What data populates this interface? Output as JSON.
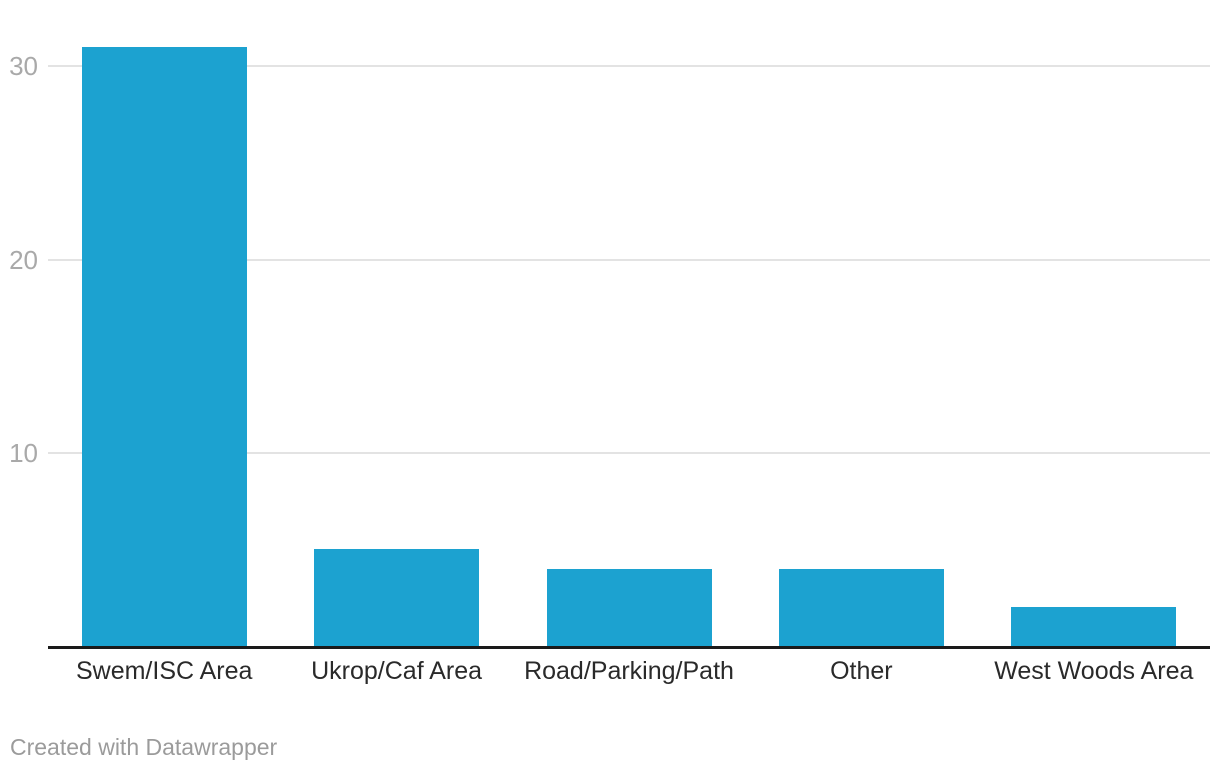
{
  "chart_data": {
    "type": "bar",
    "title": "",
    "categories": [
      "Swem/ISC Area",
      "Ukrop/Caf Area",
      "Road/Parking/Path",
      "Other",
      "West Woods Area"
    ],
    "values": [
      31,
      5,
      4,
      4,
      2
    ],
    "xlabel": "",
    "ylabel": "",
    "yticks": [
      10,
      20,
      30
    ],
    "ylim": [
      0,
      32.4
    ],
    "grid": true,
    "legend_position": "none",
    "bar_color": "#1CA2D0"
  },
  "colors": {
    "bar": "#1CA2D0",
    "gridline": "#e3e3e3",
    "axis_line": "#1a1a1a",
    "tick_label": "#a9a9a9",
    "category_label": "#2a2a2a",
    "attribution": "#9b9b9b",
    "background": "#ffffff"
  },
  "footer": {
    "attribution": "Created with Datawrapper"
  }
}
